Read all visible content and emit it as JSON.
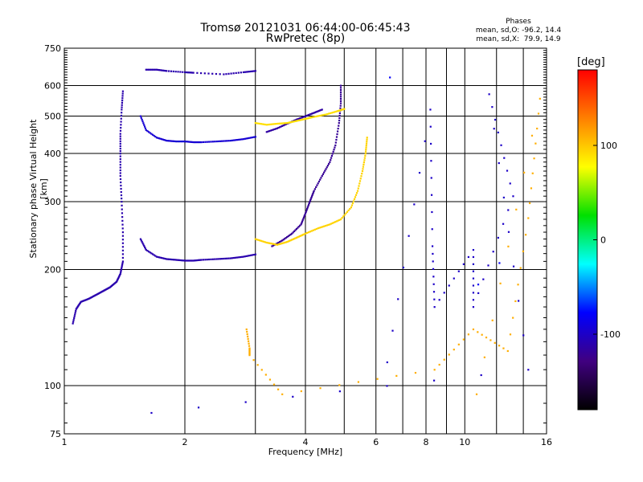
{
  "header": {
    "title_line1": "Tromsø 20121031 06:44:00-06:45:43",
    "title_line2": "RwPretec (8p)"
  },
  "phases_box": {
    "title": "Phases",
    "line_O": "mean, sd,O: -96.2, 14.4",
    "line_X": "mean, sd,X:  79.9, 14.9"
  },
  "colorbar": {
    "unit": "[deg]",
    "range": [
      -180,
      180
    ],
    "ticks": [
      100,
      0,
      -100
    ],
    "colors": [
      "#ff0000",
      "#ff8000",
      "#ffff00",
      "#00e000",
      "#00ffff",
      "#0000ff",
      "#400080",
      "#000000"
    ]
  },
  "chart_data": {
    "type": "scatter",
    "title": "Tromsø 20121031 06:44:00-06:45:43",
    "subtitle": "RwPretec (8p)",
    "xlabel": "Frequency [MHz]",
    "ylabel": "Stationary phase Virtual Height [km]",
    "xscale": "log",
    "yscale": "log",
    "xlim": [
      1,
      16
    ],
    "ylim": [
      75,
      750
    ],
    "xticks": [
      1,
      2,
      4,
      6,
      8,
      10,
      16
    ],
    "yticks": [
      75,
      100,
      200,
      300,
      400,
      500,
      600,
      750
    ],
    "grid": true,
    "series": [
      {
        "phase": -110,
        "points": [
          [
            1.05,
            145
          ],
          [
            1.07,
            158
          ],
          [
            1.1,
            165
          ],
          [
            1.15,
            168
          ],
          [
            1.2,
            172
          ],
          [
            1.25,
            176
          ],
          [
            1.3,
            180
          ],
          [
            1.35,
            186
          ],
          [
            1.38,
            195
          ],
          [
            1.4,
            210
          ],
          [
            1.4,
            250
          ],
          [
            1.39,
            300
          ],
          [
            1.38,
            350
          ],
          [
            1.38,
            400
          ],
          [
            1.38,
            450
          ],
          [
            1.39,
            520
          ],
          [
            1.4,
            580
          ]
        ]
      },
      {
        "phase": -110,
        "points": [
          [
            1.55,
            240
          ],
          [
            1.6,
            225
          ],
          [
            1.7,
            216
          ],
          [
            1.8,
            213
          ],
          [
            1.9,
            212
          ],
          [
            2.0,
            211
          ],
          [
            2.1,
            211
          ],
          [
            2.2,
            212
          ],
          [
            2.4,
            213
          ],
          [
            2.6,
            214
          ],
          [
            2.8,
            216
          ],
          [
            3.0,
            219
          ]
        ]
      },
      {
        "phase": -95,
        "points": [
          [
            1.55,
            500
          ],
          [
            1.6,
            460
          ],
          [
            1.7,
            440
          ],
          [
            1.8,
            432
          ],
          [
            1.9,
            430
          ],
          [
            2.0,
            430
          ],
          [
            2.1,
            428
          ],
          [
            2.2,
            428
          ],
          [
            2.4,
            430
          ],
          [
            2.6,
            432
          ],
          [
            2.8,
            436
          ],
          [
            3.0,
            442
          ]
        ]
      },
      {
        "phase": -115,
        "points": [
          [
            3.2,
            455
          ],
          [
            3.4,
            465
          ],
          [
            3.6,
            478
          ],
          [
            3.8,
            490
          ],
          [
            4.0,
            500
          ],
          [
            4.2,
            510
          ],
          [
            4.4,
            520
          ]
        ]
      },
      {
        "phase": -110,
        "points": [
          [
            1.6,
            660
          ],
          [
            1.7,
            660
          ],
          [
            1.8,
            655
          ],
          [
            2.0,
            650
          ],
          [
            2.1,
            648
          ],
          [
            2.5,
            642
          ],
          [
            2.8,
            650
          ],
          [
            3.0,
            655
          ]
        ]
      },
      {
        "phase": -120,
        "points": [
          [
            3.3,
            230
          ],
          [
            3.5,
            238
          ],
          [
            3.7,
            248
          ],
          [
            3.9,
            262
          ],
          [
            4.0,
            280
          ],
          [
            4.1,
            300
          ],
          [
            4.2,
            320
          ],
          [
            4.4,
            350
          ],
          [
            4.6,
            380
          ],
          [
            4.75,
            420
          ],
          [
            4.85,
            480
          ],
          [
            4.9,
            540
          ],
          [
            4.9,
            600
          ]
        ]
      },
      {
        "phase": 95,
        "points": [
          [
            3.0,
            240
          ],
          [
            3.2,
            235
          ],
          [
            3.4,
            232
          ],
          [
            3.6,
            236
          ],
          [
            3.8,
            242
          ],
          [
            4.0,
            248
          ],
          [
            4.3,
            256
          ],
          [
            4.6,
            262
          ],
          [
            4.9,
            270
          ],
          [
            5.2,
            290
          ],
          [
            5.4,
            320
          ],
          [
            5.55,
            360
          ],
          [
            5.65,
            400
          ],
          [
            5.7,
            440
          ]
        ]
      },
      {
        "phase": 90,
        "points": [
          [
            3.0,
            480
          ],
          [
            3.2,
            475
          ],
          [
            3.4,
            478
          ],
          [
            3.6,
            480
          ],
          [
            3.8,
            486
          ],
          [
            4.0,
            492
          ],
          [
            4.2,
            498
          ],
          [
            4.5,
            505
          ],
          [
            4.8,
            515
          ],
          [
            5.0,
            522
          ]
        ]
      },
      {
        "phase": -100,
        "points": [
          [
            6.4,
            115
          ],
          [
            8.2,
            520
          ],
          [
            8.3,
            230
          ],
          [
            8.4,
            160
          ],
          [
            10.5,
            225
          ],
          [
            10.5,
            160
          ],
          [
            13.2,
            310
          ],
          [
            11.5,
            570
          ],
          [
            14.4,
            110
          ],
          [
            1.65,
            85
          ]
        ]
      },
      {
        "phase": 110,
        "points": [
          [
            2.85,
            140
          ],
          [
            2.9,
            125
          ],
          [
            2.9,
            120
          ],
          [
            3.5,
            95
          ],
          [
            8.4,
            110
          ],
          [
            10.5,
            140
          ],
          [
            12.8,
            123
          ],
          [
            14.4,
            272
          ],
          [
            15.4,
            555
          ],
          [
            10.7,
            95
          ]
        ]
      },
      {
        "phase": -80,
        "points": [
          [
            12.2,
            208
          ],
          [
            10.8,
            183
          ],
          [
            6.5,
            630
          ]
        ]
      }
    ]
  }
}
